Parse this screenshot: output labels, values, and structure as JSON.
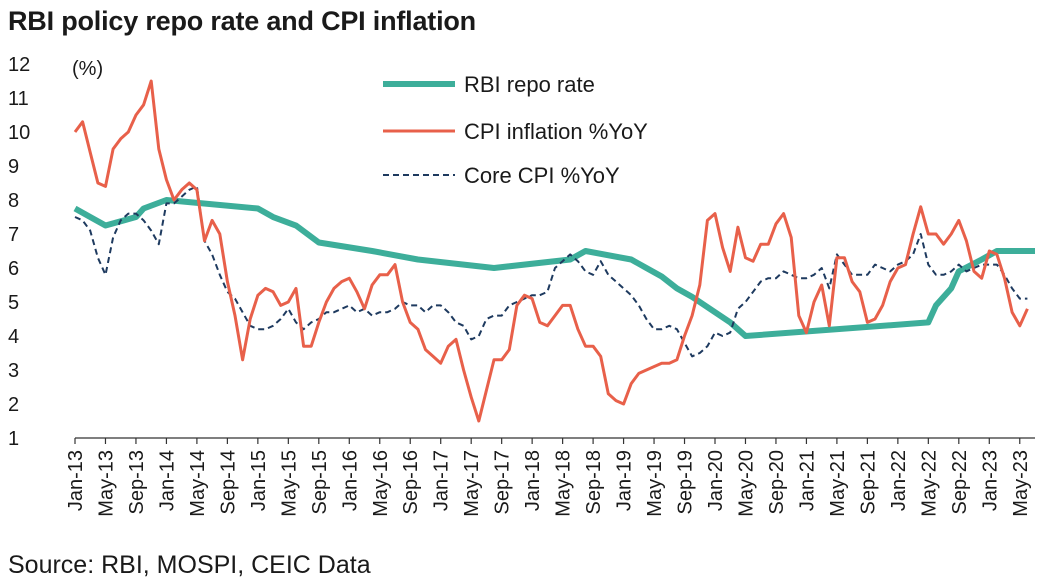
{
  "title": "RBI policy repo rate and CPI inflation",
  "source": "Source: RBI, MOSPI, CEIC Data",
  "chart_data": {
    "type": "line",
    "ylabel": "(%)",
    "ylim": [
      1,
      12
    ],
    "yticks": [
      1,
      2,
      3,
      4,
      5,
      6,
      7,
      8,
      9,
      10,
      11,
      12
    ],
    "x_start": "2013-01",
    "x_end": "2023-07",
    "x_tick_labels": [
      "Jan-13",
      "May-13",
      "Sep-13",
      "Jan-14",
      "May-14",
      "Sep-14",
      "Jan-15",
      "May-15",
      "Sep-15",
      "Jan-16",
      "May-16",
      "Sep-16",
      "Jan-17",
      "May-17",
      "Sep-17",
      "Jan-18",
      "May-18",
      "Sep-18",
      "Jan-19",
      "May-19",
      "Sep-19",
      "Jan-20",
      "May-20",
      "Sep-20",
      "Jan-21",
      "May-21",
      "Sep-21",
      "Jan-22",
      "May-22",
      "Sep-22",
      "Jan-23",
      "May-23"
    ],
    "legend_position": "top-center",
    "grid": false,
    "series": [
      {
        "name": "RBI repo rate",
        "color": "#3DAE9A",
        "style": "solid-thick",
        "points": [
          [
            "2013-01",
            7.75
          ],
          [
            "2013-03",
            7.5
          ],
          [
            "2013-05",
            7.25
          ],
          [
            "2013-09",
            7.5
          ],
          [
            "2013-10",
            7.75
          ],
          [
            "2014-01",
            8.0
          ],
          [
            "2015-01",
            7.75
          ],
          [
            "2015-03",
            7.5
          ],
          [
            "2015-06",
            7.25
          ],
          [
            "2015-09",
            6.75
          ],
          [
            "2016-04",
            6.5
          ],
          [
            "2016-10",
            6.25
          ],
          [
            "2017-08",
            6.0
          ],
          [
            "2018-06",
            6.25
          ],
          [
            "2018-08",
            6.5
          ],
          [
            "2019-02",
            6.25
          ],
          [
            "2019-04",
            6.0
          ],
          [
            "2019-06",
            5.75
          ],
          [
            "2019-08",
            5.4
          ],
          [
            "2019-10",
            5.15
          ],
          [
            "2020-03",
            4.4
          ],
          [
            "2020-05",
            4.0
          ],
          [
            "2022-05",
            4.4
          ],
          [
            "2022-06",
            4.9
          ],
          [
            "2022-08",
            5.4
          ],
          [
            "2022-09",
            5.9
          ],
          [
            "2022-12",
            6.25
          ],
          [
            "2023-02",
            6.5
          ],
          [
            "2023-07",
            6.5
          ]
        ]
      },
      {
        "name": "CPI inflation %YoY",
        "color": "#E8604A",
        "style": "solid",
        "points": [
          [
            "2013-01",
            10.0
          ],
          [
            "2013-02",
            10.3
          ],
          [
            "2013-03",
            9.4
          ],
          [
            "2013-04",
            8.5
          ],
          [
            "2013-05",
            8.4
          ],
          [
            "2013-06",
            9.5
          ],
          [
            "2013-07",
            9.8
          ],
          [
            "2013-08",
            10.0
          ],
          [
            "2013-09",
            10.5
          ],
          [
            "2013-10",
            10.8
          ],
          [
            "2013-11",
            11.5
          ],
          [
            "2013-12",
            9.5
          ],
          [
            "2014-01",
            8.6
          ],
          [
            "2014-02",
            8.0
          ],
          [
            "2014-03",
            8.3
          ],
          [
            "2014-04",
            8.5
          ],
          [
            "2014-05",
            8.3
          ],
          [
            "2014-06",
            6.8
          ],
          [
            "2014-07",
            7.4
          ],
          [
            "2014-08",
            7.0
          ],
          [
            "2014-09",
            5.6
          ],
          [
            "2014-10",
            4.6
          ],
          [
            "2014-11",
            3.3
          ],
          [
            "2014-12",
            4.5
          ],
          [
            "2015-01",
            5.2
          ],
          [
            "2015-02",
            5.4
          ],
          [
            "2015-03",
            5.3
          ],
          [
            "2015-04",
            4.9
          ],
          [
            "2015-05",
            5.0
          ],
          [
            "2015-06",
            5.4
          ],
          [
            "2015-07",
            3.7
          ],
          [
            "2015-08",
            3.7
          ],
          [
            "2015-09",
            4.4
          ],
          [
            "2015-10",
            5.0
          ],
          [
            "2015-11",
            5.4
          ],
          [
            "2015-12",
            5.6
          ],
          [
            "2016-01",
            5.7
          ],
          [
            "2016-02",
            5.3
          ],
          [
            "2016-03",
            4.8
          ],
          [
            "2016-04",
            5.5
          ],
          [
            "2016-05",
            5.8
          ],
          [
            "2016-06",
            5.8
          ],
          [
            "2016-07",
            6.1
          ],
          [
            "2016-08",
            5.0
          ],
          [
            "2016-09",
            4.4
          ],
          [
            "2016-10",
            4.2
          ],
          [
            "2016-11",
            3.6
          ],
          [
            "2016-12",
            3.4
          ],
          [
            "2017-01",
            3.2
          ],
          [
            "2017-02",
            3.7
          ],
          [
            "2017-03",
            3.9
          ],
          [
            "2017-04",
            3.0
          ],
          [
            "2017-05",
            2.2
          ],
          [
            "2017-06",
            1.5
          ],
          [
            "2017-07",
            2.4
          ],
          [
            "2017-08",
            3.3
          ],
          [
            "2017-09",
            3.3
          ],
          [
            "2017-10",
            3.6
          ],
          [
            "2017-11",
            4.9
          ],
          [
            "2017-12",
            5.2
          ],
          [
            "2018-01",
            5.1
          ],
          [
            "2018-02",
            4.4
          ],
          [
            "2018-03",
            4.3
          ],
          [
            "2018-04",
            4.6
          ],
          [
            "2018-05",
            4.9
          ],
          [
            "2018-06",
            4.9
          ],
          [
            "2018-07",
            4.2
          ],
          [
            "2018-08",
            3.7
          ],
          [
            "2018-09",
            3.7
          ],
          [
            "2018-10",
            3.4
          ],
          [
            "2018-11",
            2.3
          ],
          [
            "2018-12",
            2.1
          ],
          [
            "2019-01",
            2.0
          ],
          [
            "2019-02",
            2.6
          ],
          [
            "2019-03",
            2.9
          ],
          [
            "2019-04",
            3.0
          ],
          [
            "2019-05",
            3.1
          ],
          [
            "2019-06",
            3.2
          ],
          [
            "2019-07",
            3.2
          ],
          [
            "2019-08",
            3.3
          ],
          [
            "2019-09",
            4.0
          ],
          [
            "2019-10",
            4.6
          ],
          [
            "2019-11",
            5.5
          ],
          [
            "2019-12",
            7.4
          ],
          [
            "2020-01",
            7.6
          ],
          [
            "2020-02",
            6.6
          ],
          [
            "2020-03",
            5.9
          ],
          [
            "2020-04",
            7.2
          ],
          [
            "2020-05",
            6.3
          ],
          [
            "2020-06",
            6.2
          ],
          [
            "2020-07",
            6.7
          ],
          [
            "2020-08",
            6.7
          ],
          [
            "2020-09",
            7.3
          ],
          [
            "2020-10",
            7.6
          ],
          [
            "2020-11",
            6.9
          ],
          [
            "2020-12",
            4.6
          ],
          [
            "2021-01",
            4.1
          ],
          [
            "2021-02",
            5.0
          ],
          [
            "2021-03",
            5.5
          ],
          [
            "2021-04",
            4.3
          ],
          [
            "2021-05",
            6.3
          ],
          [
            "2021-06",
            6.3
          ],
          [
            "2021-07",
            5.6
          ],
          [
            "2021-08",
            5.3
          ],
          [
            "2021-09",
            4.4
          ],
          [
            "2021-10",
            4.5
          ],
          [
            "2021-11",
            4.9
          ],
          [
            "2021-12",
            5.6
          ],
          [
            "2022-01",
            6.0
          ],
          [
            "2022-02",
            6.1
          ],
          [
            "2022-03",
            7.0
          ],
          [
            "2022-04",
            7.8
          ],
          [
            "2022-05",
            7.0
          ],
          [
            "2022-06",
            7.0
          ],
          [
            "2022-07",
            6.7
          ],
          [
            "2022-08",
            7.0
          ],
          [
            "2022-09",
            7.4
          ],
          [
            "2022-10",
            6.8
          ],
          [
            "2022-11",
            5.9
          ],
          [
            "2022-12",
            5.7
          ],
          [
            "2023-01",
            6.5
          ],
          [
            "2023-02",
            6.4
          ],
          [
            "2023-03",
            5.7
          ],
          [
            "2023-04",
            4.7
          ],
          [
            "2023-05",
            4.3
          ],
          [
            "2023-06",
            4.8
          ]
        ]
      },
      {
        "name": "Core CPI %YoY",
        "color": "#1E3A5F",
        "style": "dashed",
        "points": [
          [
            "2013-01",
            7.5
          ],
          [
            "2013-02",
            7.4
          ],
          [
            "2013-03",
            7.1
          ],
          [
            "2013-04",
            6.3
          ],
          [
            "2013-05",
            5.8
          ],
          [
            "2013-06",
            6.9
          ],
          [
            "2013-07",
            7.4
          ],
          [
            "2013-08",
            7.6
          ],
          [
            "2013-09",
            7.6
          ],
          [
            "2013-10",
            7.4
          ],
          [
            "2013-11",
            7.1
          ],
          [
            "2013-12",
            6.7
          ],
          [
            "2014-01",
            7.9
          ],
          [
            "2014-02",
            7.9
          ],
          [
            "2014-03",
            8.1
          ],
          [
            "2014-04",
            8.3
          ],
          [
            "2014-05",
            8.4
          ],
          [
            "2014-06",
            6.8
          ],
          [
            "2014-07",
            6.4
          ],
          [
            "2014-08",
            5.8
          ],
          [
            "2014-09",
            5.3
          ],
          [
            "2014-10",
            5.1
          ],
          [
            "2014-11",
            4.7
          ],
          [
            "2014-12",
            4.3
          ],
          [
            "2015-01",
            4.2
          ],
          [
            "2015-02",
            4.2
          ],
          [
            "2015-03",
            4.3
          ],
          [
            "2015-04",
            4.5
          ],
          [
            "2015-05",
            4.8
          ],
          [
            "2015-06",
            4.4
          ],
          [
            "2015-07",
            4.2
          ],
          [
            "2015-08",
            4.4
          ],
          [
            "2015-09",
            4.5
          ],
          [
            "2015-10",
            4.7
          ],
          [
            "2015-11",
            4.7
          ],
          [
            "2015-12",
            4.8
          ],
          [
            "2016-01",
            4.9
          ],
          [
            "2016-02",
            4.7
          ],
          [
            "2016-03",
            4.8
          ],
          [
            "2016-04",
            4.6
          ],
          [
            "2016-05",
            4.7
          ],
          [
            "2016-06",
            4.7
          ],
          [
            "2016-07",
            4.8
          ],
          [
            "2016-08",
            5.0
          ],
          [
            "2016-09",
            4.9
          ],
          [
            "2016-10",
            4.9
          ],
          [
            "2016-11",
            4.7
          ],
          [
            "2016-12",
            4.9
          ],
          [
            "2017-01",
            4.9
          ],
          [
            "2017-02",
            4.7
          ],
          [
            "2017-03",
            4.4
          ],
          [
            "2017-04",
            4.3
          ],
          [
            "2017-05",
            3.9
          ],
          [
            "2017-06",
            4.0
          ],
          [
            "2017-07",
            4.5
          ],
          [
            "2017-08",
            4.6
          ],
          [
            "2017-09",
            4.6
          ],
          [
            "2017-10",
            4.9
          ],
          [
            "2017-11",
            5.0
          ],
          [
            "2017-12",
            5.1
          ],
          [
            "2018-01",
            5.2
          ],
          [
            "2018-02",
            5.2
          ],
          [
            "2018-03",
            5.3
          ],
          [
            "2018-04",
            6.0
          ],
          [
            "2018-05",
            6.2
          ],
          [
            "2018-06",
            6.4
          ],
          [
            "2018-07",
            6.2
          ],
          [
            "2018-08",
            5.9
          ],
          [
            "2018-09",
            5.8
          ],
          [
            "2018-10",
            6.2
          ],
          [
            "2018-11",
            5.8
          ],
          [
            "2018-12",
            5.6
          ],
          [
            "2019-01",
            5.4
          ],
          [
            "2019-02",
            5.2
          ],
          [
            "2019-03",
            4.9
          ],
          [
            "2019-04",
            4.5
          ],
          [
            "2019-05",
            4.2
          ],
          [
            "2019-06",
            4.2
          ],
          [
            "2019-07",
            4.3
          ],
          [
            "2019-08",
            4.2
          ],
          [
            "2019-09",
            3.8
          ],
          [
            "2019-10",
            3.4
          ],
          [
            "2019-11",
            3.5
          ],
          [
            "2019-12",
            3.7
          ],
          [
            "2020-01",
            4.1
          ],
          [
            "2020-02",
            4.0
          ],
          [
            "2020-03",
            4.1
          ],
          [
            "2020-04",
            4.8
          ],
          [
            "2020-05",
            5.0
          ],
          [
            "2020-06",
            5.3
          ],
          [
            "2020-07",
            5.6
          ],
          [
            "2020-08",
            5.7
          ],
          [
            "2020-09",
            5.7
          ],
          [
            "2020-10",
            5.9
          ],
          [
            "2020-11",
            5.8
          ],
          [
            "2020-12",
            5.7
          ],
          [
            "2021-01",
            5.7
          ],
          [
            "2021-02",
            5.8
          ],
          [
            "2021-03",
            6.0
          ],
          [
            "2021-04",
            5.4
          ],
          [
            "2021-05",
            6.4
          ],
          [
            "2021-06",
            6.1
          ],
          [
            "2021-07",
            5.8
          ],
          [
            "2021-08",
            5.8
          ],
          [
            "2021-09",
            5.8
          ],
          [
            "2021-10",
            6.1
          ],
          [
            "2021-11",
            6.0
          ],
          [
            "2021-12",
            5.9
          ],
          [
            "2022-01",
            6.1
          ],
          [
            "2022-02",
            6.2
          ],
          [
            "2022-03",
            6.4
          ],
          [
            "2022-04",
            7.0
          ],
          [
            "2022-05",
            6.1
          ],
          [
            "2022-06",
            5.8
          ],
          [
            "2022-07",
            5.8
          ],
          [
            "2022-08",
            5.9
          ],
          [
            "2022-09",
            6.1
          ],
          [
            "2022-10",
            5.9
          ],
          [
            "2022-11",
            6.0
          ],
          [
            "2022-12",
            6.1
          ],
          [
            "2023-01",
            6.1
          ],
          [
            "2023-02",
            6.1
          ],
          [
            "2023-03",
            5.8
          ],
          [
            "2023-04",
            5.4
          ],
          [
            "2023-05",
            5.1
          ],
          [
            "2023-06",
            5.1
          ]
        ]
      }
    ]
  }
}
